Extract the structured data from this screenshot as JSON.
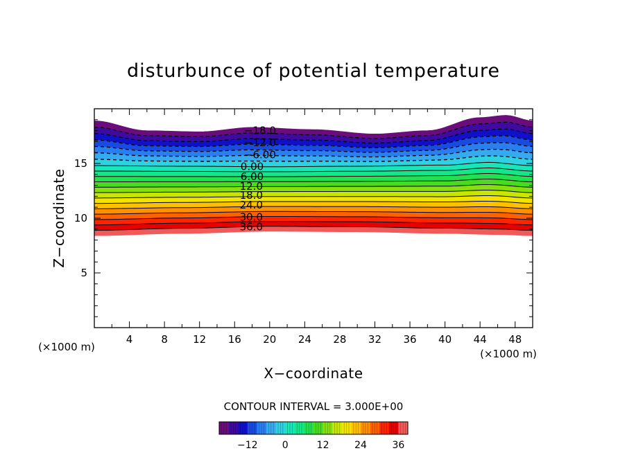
{
  "chart_data": {
    "type": "heatmap",
    "title": "disturbunce of potential temperature",
    "xlabel": "X−coordinate",
    "ylabel": "Z−coordinate",
    "x_unit": "(×1000 m)",
    "y_unit": "(×1000 m)",
    "xlim": [
      0,
      50
    ],
    "ylim": [
      0,
      20
    ],
    "x_ticks": [
      4,
      8,
      12,
      16,
      20,
      24,
      28,
      32,
      36,
      40,
      44,
      48
    ],
    "x_tick_labels": [
      "4",
      "8",
      "12",
      "16",
      "20",
      "24",
      "28",
      "32",
      "36",
      "40",
      "44",
      "48"
    ],
    "y_ticks": [
      5,
      10,
      15
    ],
    "y_tick_labels": [
      "5",
      "10",
      "15"
    ],
    "contour_interval_text": "CONTOUR INTERVAL = 3.000E+00",
    "contour_interval": 3,
    "value_range": [
      -21,
      39
    ],
    "contour_levels": [
      -21,
      -18,
      -15,
      -12,
      -9,
      -6,
      -3,
      0,
      3,
      6,
      9,
      12,
      15,
      18,
      21,
      24,
      27,
      30,
      33,
      36,
      39
    ],
    "negative_contours_dashed": true,
    "contour_labels": [
      {
        "value": -18,
        "text": "−18.0",
        "x": 18.9,
        "z": 18.0
      },
      {
        "value": -12,
        "text": "−12.0",
        "x": 18.9,
        "z": 16.9
      },
      {
        "value": -6,
        "text": "−6.00",
        "x": 18.9,
        "z": 15.8
      },
      {
        "value": 0,
        "text": "0.00",
        "x": 18.0,
        "z": 14.7
      },
      {
        "value": 6,
        "text": "6.00",
        "x": 18.0,
        "z": 13.8
      },
      {
        "value": 12,
        "text": "12.0",
        "x": 17.9,
        "z": 12.9
      },
      {
        "value": 18,
        "text": "18.0",
        "x": 17.9,
        "z": 12.1
      },
      {
        "value": 24,
        "text": "24.0",
        "x": 17.9,
        "z": 11.2
      },
      {
        "value": 30,
        "text": "30.0",
        "x": 17.9,
        "z": 10.1
      },
      {
        "value": 36,
        "text": "36.0",
        "x": 17.9,
        "z": 9.2
      }
    ],
    "field_bottom_z": [
      {
        "x": 0,
        "z": 8.4
      },
      {
        "x": 10,
        "z": 8.6
      },
      {
        "x": 20,
        "z": 8.8
      },
      {
        "x": 30,
        "z": 8.75
      },
      {
        "x": 40,
        "z": 8.6
      },
      {
        "x": 46,
        "z": 8.5
      },
      {
        "x": 50,
        "z": 8.4
      }
    ],
    "field_top_z": [
      {
        "x": 0,
        "z": 18.9
      },
      {
        "x": 6,
        "z": 18.0
      },
      {
        "x": 12,
        "z": 17.9
      },
      {
        "x": 18,
        "z": 18.3
      },
      {
        "x": 25,
        "z": 18.1
      },
      {
        "x": 32,
        "z": 17.7
      },
      {
        "x": 38,
        "z": 18.0
      },
      {
        "x": 44,
        "z": 19.2
      },
      {
        "x": 47,
        "z": 19.4
      },
      {
        "x": 50,
        "z": 18.9
      }
    ],
    "zero_level_z": [
      {
        "x": 0,
        "z": 14.8
      },
      {
        "x": 10,
        "z": 14.75
      },
      {
        "x": 20,
        "z": 14.7
      },
      {
        "x": 30,
        "z": 14.75
      },
      {
        "x": 40,
        "z": 14.85
      },
      {
        "x": 45,
        "z": 15.1
      },
      {
        "x": 50,
        "z": 14.8
      }
    ],
    "colorbar": {
      "tick_values": [
        -12,
        0,
        12,
        24,
        36
      ],
      "tick_labels": [
        "−12",
        "0",
        "12",
        "24",
        "36"
      ],
      "colors": [
        "#6a0d7a",
        "#3f0aa0",
        "#1010c8",
        "#1a4be0",
        "#2b7ef0",
        "#36a9f0",
        "#2fd0e0",
        "#19e6b8",
        "#14e68a",
        "#22e050",
        "#48dc20",
        "#86e010",
        "#c8e600",
        "#f2e400",
        "#ffc000",
        "#ff9000",
        "#ff6000",
        "#ff2400",
        "#e60000",
        "#f25a5a",
        "#f7a8a8"
      ]
    }
  }
}
